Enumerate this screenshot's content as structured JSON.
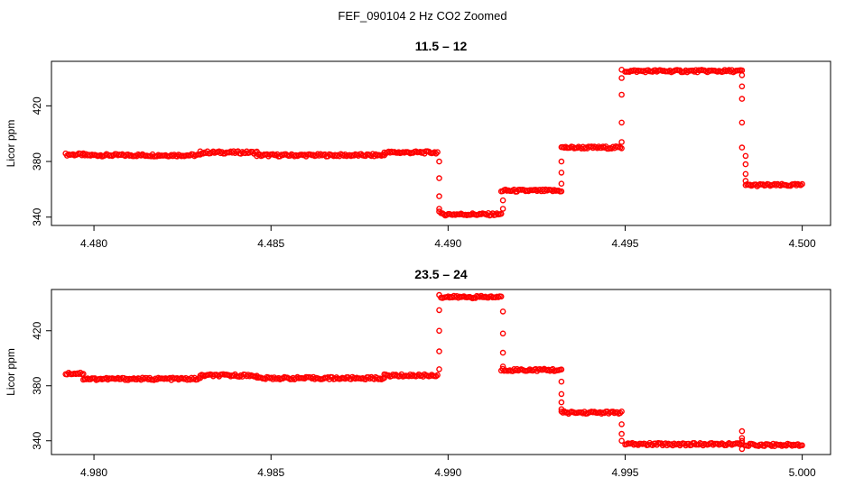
{
  "figure": {
    "title": "FEF_090104  2 Hz CO2 Zoomed",
    "marker_color": "#ff0000"
  },
  "chart_data": [
    {
      "type": "scatter",
      "title": "11.5 – 12",
      "xlabel": "",
      "ylabel": "Licor ppm",
      "xlim": [
        4.4788,
        4.5008
      ],
      "ylim": [
        334,
        452
      ],
      "xticks": [
        4.48,
        4.485,
        4.49,
        4.495,
        4.5
      ],
      "xtick_labels": [
        "4.480",
        "4.485",
        "4.490",
        "4.495",
        "4.500"
      ],
      "yticks": [
        340,
        380,
        420
      ],
      "ytick_labels": [
        "340",
        "380",
        "420"
      ],
      "grid": false,
      "legend": "none",
      "segments": [
        {
          "x0": 4.4792,
          "x1": 4.4797,
          "y": 385
        },
        {
          "x0": 4.4797,
          "x1": 4.483,
          "y": 384.5
        },
        {
          "x0": 4.483,
          "x1": 4.4846,
          "y": 386.5
        },
        {
          "x0": 4.4846,
          "x1": 4.4882,
          "y": 384.5
        },
        {
          "x0": 4.4882,
          "x1": 4.4897,
          "y": 386.5
        },
        {
          "x0": 4.4898,
          "x1": 4.4915,
          "y": 342
        },
        {
          "x0": 4.4915,
          "x1": 4.4932,
          "y": 359
        },
        {
          "x0": 4.4932,
          "x1": 4.4949,
          "y": 390
        },
        {
          "x0": 4.495,
          "x1": 4.4983,
          "y": 445
        },
        {
          "x0": 4.4984,
          "x1": 4.5,
          "y": 363
        }
      ],
      "transitions": [
        {
          "x": 4.48975,
          "values": [
            380,
            368,
            355,
            346,
            344
          ]
        },
        {
          "x": 4.49155,
          "values": [
            346,
            352
          ]
        },
        {
          "x": 4.4932,
          "values": [
            364,
            372,
            380
          ]
        },
        {
          "x": 4.4949,
          "values": [
            394,
            408,
            428,
            440,
            446
          ]
        },
        {
          "x": 4.4983,
          "values": [
            442,
            434,
            425,
            408,
            390
          ]
        },
        {
          "x": 4.4984,
          "values": [
            384,
            378,
            371,
            366
          ]
        }
      ]
    },
    {
      "type": "scatter",
      "title": "23.5 – 24",
      "xlabel": "",
      "ylabel": "Licor ppm",
      "xlim": [
        4.9788,
        5.0008
      ],
      "ylim": [
        330,
        450
      ],
      "xticks": [
        4.98,
        4.985,
        4.99,
        4.995,
        5.0
      ],
      "xtick_labels": [
        "4.980",
        "4.985",
        "4.990",
        "4.995",
        "5.000"
      ],
      "yticks": [
        340,
        380,
        420
      ],
      "ytick_labels": [
        "340",
        "380",
        "420"
      ],
      "grid": false,
      "legend": "none",
      "segments": [
        {
          "x0": 4.9792,
          "x1": 4.9797,
          "y": 389
        },
        {
          "x0": 4.9797,
          "x1": 4.983,
          "y": 385
        },
        {
          "x0": 4.983,
          "x1": 4.9846,
          "y": 387.5
        },
        {
          "x0": 4.9846,
          "x1": 4.9882,
          "y": 385.5
        },
        {
          "x0": 4.9882,
          "x1": 4.9897,
          "y": 387.5
        },
        {
          "x0": 4.9898,
          "x1": 4.9915,
          "y": 444.5
        },
        {
          "x0": 4.9915,
          "x1": 4.9932,
          "y": 391.5
        },
        {
          "x0": 4.9932,
          "x1": 4.9949,
          "y": 360.5
        },
        {
          "x0": 4.995,
          "x1": 4.9983,
          "y": 337.5
        },
        {
          "x0": 4.9984,
          "x1": 5.0,
          "y": 337
        }
      ],
      "transitions": [
        {
          "x": 4.98975,
          "values": [
            392,
            405,
            420,
            435,
            446
          ]
        },
        {
          "x": 4.99155,
          "values": [
            434,
            418,
            404,
            394
          ]
        },
        {
          "x": 4.9932,
          "values": [
            383,
            374,
            368,
            363
          ]
        },
        {
          "x": 4.9949,
          "values": [
            352,
            345,
            340
          ]
        },
        {
          "x": 4.9983,
          "values": [
            347,
            340,
            334,
            342
          ]
        }
      ]
    }
  ]
}
